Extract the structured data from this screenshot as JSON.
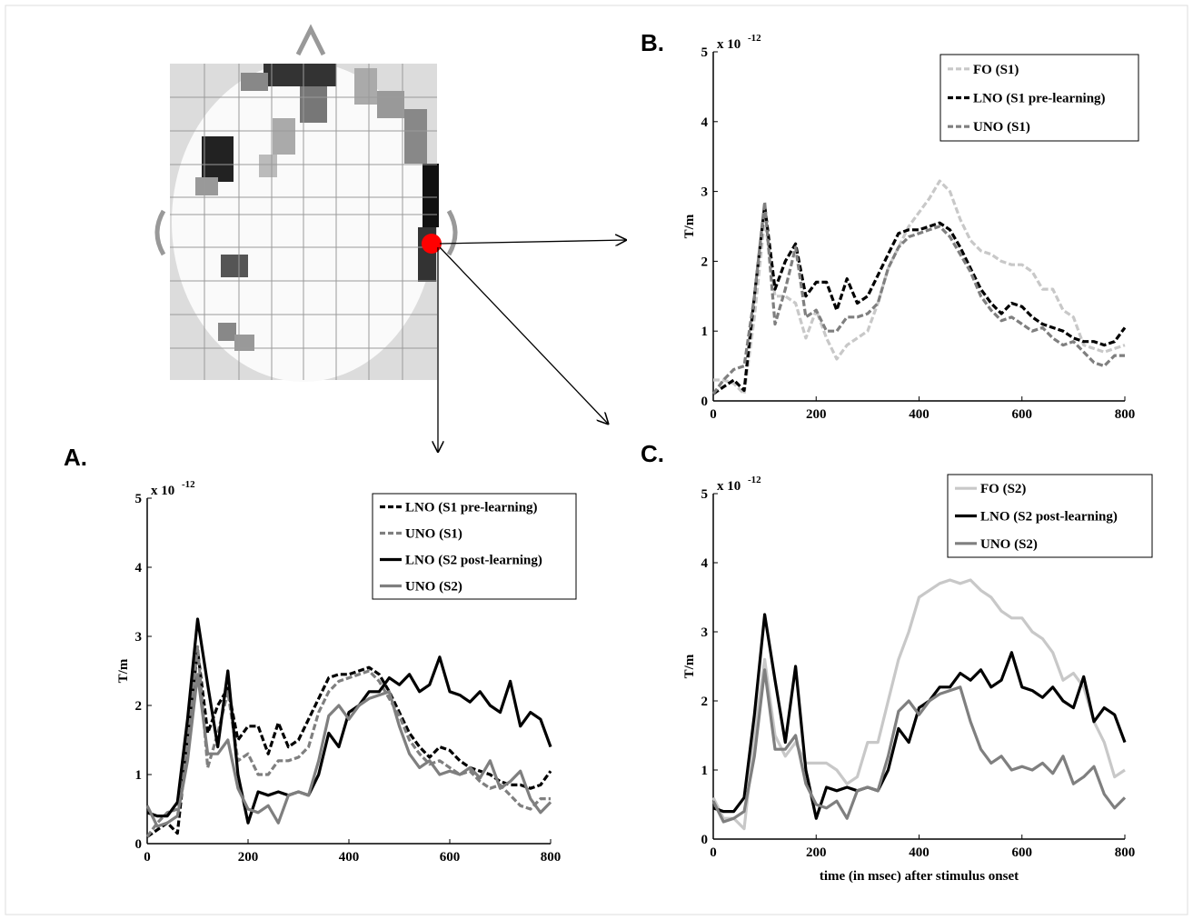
{
  "chart_data": [
    {
      "type": "line",
      "panel": "A.",
      "y_label": "T/m",
      "y_scale_base": "x 10",
      "y_scale_exponent": "-12",
      "x": [
        0,
        20,
        40,
        60,
        80,
        100,
        120,
        140,
        160,
        180,
        200,
        220,
        240,
        260,
        280,
        300,
        320,
        340,
        360,
        380,
        400,
        420,
        440,
        460,
        480,
        500,
        520,
        540,
        560,
        580,
        600,
        620,
        640,
        660,
        680,
        700,
        720,
        740,
        760,
        780,
        800
      ],
      "xlim": [
        0,
        800
      ],
      "xticks": [
        0,
        200,
        400,
        600,
        800
      ],
      "ylim": [
        0,
        5
      ],
      "yticks": [
        0,
        1,
        2,
        3,
        4,
        5
      ],
      "legend_position": "upper right",
      "series": [
        {
          "name": "LNO (S1 pre-learning)",
          "color": "#000000",
          "line_style": "dashed",
          "values": [
            0.1,
            0.2,
            0.3,
            0.15,
            1.5,
            2.8,
            1.6,
            2.0,
            2.25,
            1.5,
            1.7,
            1.7,
            1.3,
            1.75,
            1.4,
            1.5,
            1.8,
            2.1,
            2.4,
            2.45,
            2.45,
            2.5,
            2.55,
            2.45,
            2.2,
            1.9,
            1.6,
            1.4,
            1.25,
            1.4,
            1.35,
            1.2,
            1.1,
            1.05,
            1.0,
            0.9,
            0.85,
            0.85,
            0.8,
            0.85,
            1.05
          ]
        },
        {
          "name": "UNO (S1)",
          "color": "#7f7f7f",
          "line_style": "dashed",
          "values": [
            0.1,
            0.3,
            0.45,
            0.5,
            1.5,
            2.85,
            1.1,
            1.6,
            2.2,
            1.2,
            1.3,
            1.0,
            1.0,
            1.2,
            1.2,
            1.25,
            1.4,
            1.9,
            2.2,
            2.35,
            2.4,
            2.45,
            2.5,
            2.35,
            2.1,
            1.85,
            1.5,
            1.3,
            1.15,
            1.2,
            1.1,
            1.0,
            1.05,
            0.9,
            0.8,
            0.85,
            0.7,
            0.55,
            0.5,
            0.65,
            0.65
          ]
        },
        {
          "name": "LNO (S2 post-learning)",
          "color": "#000000",
          "line_style": "solid",
          "values": [
            0.45,
            0.4,
            0.4,
            0.6,
            1.8,
            3.25,
            2.3,
            1.4,
            2.5,
            1.0,
            0.3,
            0.75,
            0.7,
            0.75,
            0.7,
            0.75,
            0.7,
            1.0,
            1.6,
            1.4,
            1.9,
            2.0,
            2.2,
            2.2,
            2.4,
            2.3,
            2.45,
            2.2,
            2.3,
            2.7,
            2.2,
            2.15,
            2.05,
            2.2,
            2.0,
            1.9,
            2.35,
            1.7,
            1.9,
            1.8,
            1.4
          ]
        },
        {
          "name": "UNO (S2)",
          "color": "#7f7f7f",
          "line_style": "solid",
          "values": [
            0.55,
            0.25,
            0.3,
            0.4,
            1.2,
            2.45,
            1.3,
            1.3,
            1.5,
            0.8,
            0.5,
            0.45,
            0.55,
            0.3,
            0.7,
            0.75,
            0.7,
            1.2,
            1.85,
            2.0,
            1.8,
            2.0,
            2.1,
            2.15,
            2.2,
            1.7,
            1.3,
            1.1,
            1.2,
            1.0,
            1.05,
            1.0,
            1.1,
            0.95,
            1.2,
            0.8,
            0.9,
            1.05,
            0.65,
            0.45,
            0.6
          ]
        }
      ]
    },
    {
      "type": "line",
      "panel": "B.",
      "y_label": "T/m",
      "y_scale_base": "x 10",
      "y_scale_exponent": "-12",
      "x": [
        0,
        20,
        40,
        60,
        80,
        100,
        120,
        140,
        160,
        180,
        200,
        220,
        240,
        260,
        280,
        300,
        320,
        340,
        360,
        380,
        400,
        420,
        440,
        460,
        480,
        500,
        520,
        540,
        560,
        580,
        600,
        620,
        640,
        660,
        680,
        700,
        720,
        740,
        760,
        780,
        800
      ],
      "xlim": [
        0,
        800
      ],
      "xticks": [
        0,
        200,
        400,
        600,
        800
      ],
      "ylim": [
        0,
        5
      ],
      "yticks": [
        0,
        1,
        2,
        3,
        4,
        5
      ],
      "legend_position": "upper right",
      "series": [
        {
          "name": "FO (S1)",
          "color": "#c8c8c8",
          "line_style": "dashed",
          "values": [
            0.3,
            0.3,
            0.25,
            0.1,
            1.2,
            2.6,
            1.5,
            1.5,
            1.4,
            0.9,
            1.3,
            0.9,
            0.6,
            0.8,
            0.9,
            1.0,
            1.4,
            1.9,
            2.2,
            2.5,
            2.7,
            2.9,
            3.15,
            3.0,
            2.6,
            2.3,
            2.15,
            2.1,
            2.0,
            1.95,
            1.95,
            1.85,
            1.6,
            1.6,
            1.3,
            1.2,
            0.8,
            0.75,
            0.7,
            0.75,
            0.8
          ]
        },
        {
          "name": "LNO (S1 pre-learning)",
          "color": "#000000",
          "line_style": "dashed",
          "values": [
            0.1,
            0.2,
            0.3,
            0.15,
            1.5,
            2.8,
            1.6,
            2.0,
            2.25,
            1.5,
            1.7,
            1.7,
            1.3,
            1.75,
            1.4,
            1.5,
            1.8,
            2.1,
            2.4,
            2.45,
            2.45,
            2.5,
            2.55,
            2.45,
            2.2,
            1.9,
            1.6,
            1.4,
            1.25,
            1.4,
            1.35,
            1.2,
            1.1,
            1.05,
            1.0,
            0.9,
            0.85,
            0.85,
            0.8,
            0.85,
            1.05
          ]
        },
        {
          "name": "UNO (S1)",
          "color": "#7f7f7f",
          "line_style": "dashed",
          "values": [
            0.1,
            0.3,
            0.45,
            0.5,
            1.5,
            2.85,
            1.1,
            1.6,
            2.2,
            1.2,
            1.3,
            1.0,
            1.0,
            1.2,
            1.2,
            1.25,
            1.4,
            1.9,
            2.2,
            2.35,
            2.4,
            2.45,
            2.5,
            2.35,
            2.1,
            1.85,
            1.5,
            1.3,
            1.15,
            1.2,
            1.1,
            1.0,
            1.05,
            0.9,
            0.8,
            0.85,
            0.7,
            0.55,
            0.5,
            0.65,
            0.65
          ]
        }
      ]
    },
    {
      "type": "line",
      "panel": "C.",
      "y_label": "T/m",
      "x_label": "time (in msec) after stimulus onset",
      "y_scale_base": "x 10",
      "y_scale_exponent": "-12",
      "x": [
        0,
        20,
        40,
        60,
        80,
        100,
        120,
        140,
        160,
        180,
        200,
        220,
        240,
        260,
        280,
        300,
        320,
        340,
        360,
        380,
        400,
        420,
        440,
        460,
        480,
        500,
        520,
        540,
        560,
        580,
        600,
        620,
        640,
        660,
        680,
        700,
        720,
        740,
        760,
        780,
        800
      ],
      "xlim": [
        0,
        800
      ],
      "xticks": [
        0,
        200,
        400,
        600,
        800
      ],
      "ylim": [
        0,
        5
      ],
      "yticks": [
        0,
        1,
        2,
        3,
        4,
        5
      ],
      "legend_position": "upper right",
      "series": [
        {
          "name": "FO (S2)",
          "color": "#c8c8c8",
          "line_style": "solid",
          "values": [
            0.6,
            0.3,
            0.3,
            0.15,
            1.5,
            2.6,
            1.5,
            1.2,
            1.4,
            1.1,
            1.1,
            1.1,
            1.0,
            0.8,
            0.9,
            1.4,
            1.4,
            2.0,
            2.6,
            3.0,
            3.5,
            3.6,
            3.7,
            3.75,
            3.7,
            3.75,
            3.6,
            3.5,
            3.3,
            3.2,
            3.2,
            3.0,
            2.9,
            2.7,
            2.3,
            2.4,
            2.2,
            1.7,
            1.4,
            0.9,
            1.0
          ]
        },
        {
          "name": "LNO (S2 post-learning)",
          "color": "#000000",
          "line_style": "solid",
          "values": [
            0.45,
            0.4,
            0.4,
            0.6,
            1.8,
            3.25,
            2.3,
            1.4,
            2.5,
            1.0,
            0.3,
            0.75,
            0.7,
            0.75,
            0.7,
            0.75,
            0.7,
            1.0,
            1.6,
            1.4,
            1.9,
            2.0,
            2.2,
            2.2,
            2.4,
            2.3,
            2.45,
            2.2,
            2.3,
            2.7,
            2.2,
            2.15,
            2.05,
            2.2,
            2.0,
            1.9,
            2.35,
            1.7,
            1.9,
            1.8,
            1.4
          ]
        },
        {
          "name": "UNO (S2)",
          "color": "#7f7f7f",
          "line_style": "solid",
          "values": [
            0.55,
            0.25,
            0.3,
            0.4,
            1.2,
            2.45,
            1.3,
            1.3,
            1.5,
            0.8,
            0.5,
            0.45,
            0.55,
            0.3,
            0.7,
            0.75,
            0.7,
            1.2,
            1.85,
            2.0,
            1.8,
            2.0,
            2.1,
            2.15,
            2.2,
            1.7,
            1.3,
            1.1,
            1.2,
            1.0,
            1.05,
            1.0,
            1.1,
            0.95,
            1.2,
            0.8,
            0.9,
            1.05,
            0.65,
            0.45,
            0.6
          ]
        }
      ]
    }
  ]
}
